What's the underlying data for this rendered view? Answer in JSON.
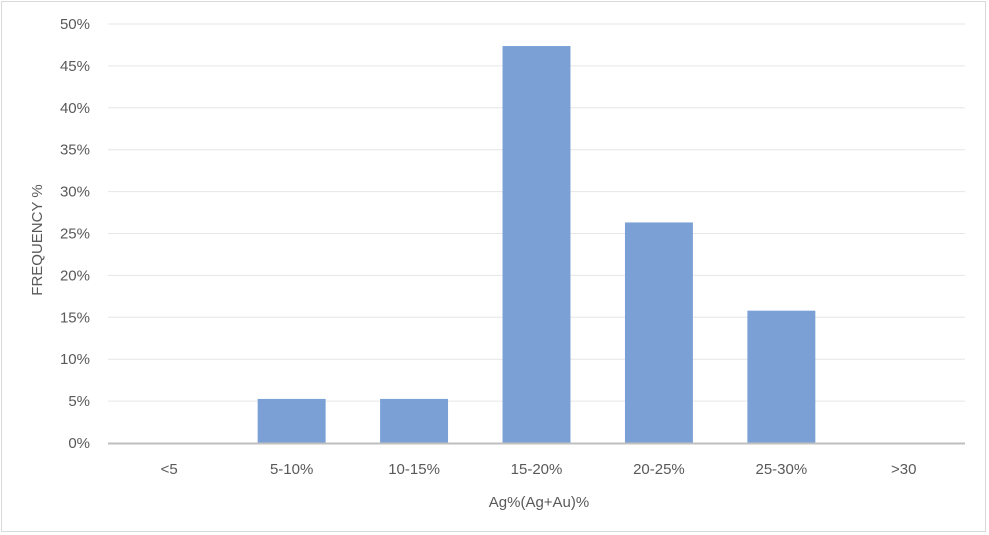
{
  "chart_data": {
    "type": "bar",
    "title": "",
    "xlabel": "Ag%(Ag+Au)%",
    "ylabel": "FREQUENCY %",
    "categories": [
      "<5",
      "5-10%",
      "10-15%",
      "15-20%",
      "20-25%",
      "25-30%",
      ">30"
    ],
    "values": [
      0,
      5.26,
      5.26,
      47.37,
      26.32,
      15.79,
      0
    ],
    "ylim": [
      0,
      50
    ],
    "yticks": [
      "0%",
      "5%",
      "10%",
      "15%",
      "20%",
      "25%",
      "30%",
      "35%",
      "40%",
      "45%",
      "50%"
    ],
    "grid": true,
    "legend": "none",
    "bar_color": "#7aa0d6",
    "axis_color": "#bfbfbf",
    "grid_color": "#e6e6e6"
  }
}
